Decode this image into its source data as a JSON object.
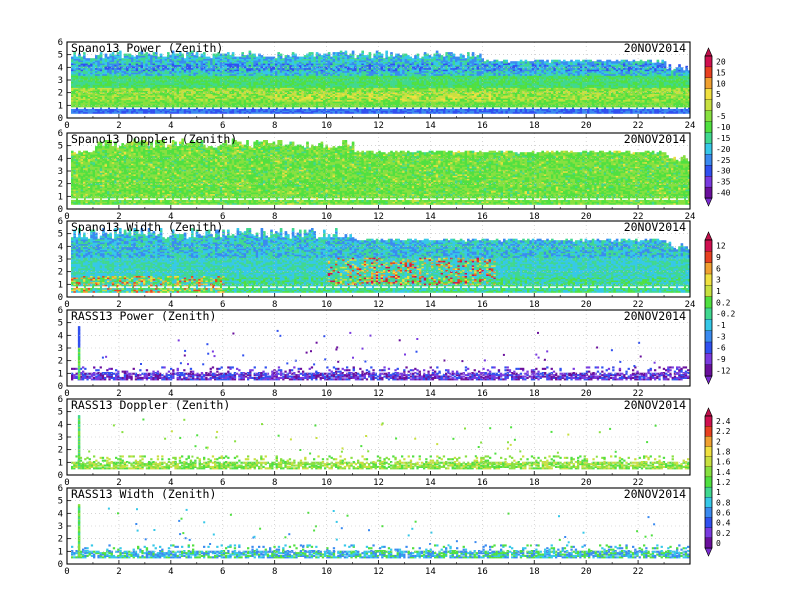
{
  "panels": [
    {
      "title": "Spano13 Power (Zenith)",
      "date": "20NOV2014",
      "kind": "power",
      "x_ticks": [
        "0",
        "2",
        "4",
        "6",
        "8",
        "10",
        "12",
        "14",
        "16",
        "18",
        "20",
        "22",
        "24"
      ]
    },
    {
      "title": "Spano13 Doppler (Zenith)",
      "date": "20NOV2014",
      "kind": "doppler",
      "x_ticks": [
        "0",
        "2",
        "4",
        "6",
        "8",
        "10",
        "12",
        "14",
        "16",
        "18",
        "20",
        "22",
        "24"
      ]
    },
    {
      "title": "Spano13 Width (Zenith)",
      "date": "20NOV2014",
      "kind": "width",
      "x_ticks": [
        "0",
        "2",
        "4",
        "6",
        "8",
        "10",
        "12",
        "14",
        "16",
        "18",
        "20",
        "22",
        "24"
      ]
    },
    {
      "title": "RASS13 Power (Zenith)",
      "date": "20NOV2014",
      "kind": "rass",
      "x_ticks": [
        "0",
        "2",
        "4",
        "6",
        "8",
        "10",
        "12",
        "14",
        "16",
        "18",
        "20",
        "22",
        ""
      ]
    },
    {
      "title": "RASS13 Doppler (Zenith)",
      "date": "20NOV2014",
      "kind": "rass",
      "x_ticks": [
        "0",
        "2",
        "4",
        "6",
        "8",
        "10",
        "12",
        "14",
        "16",
        "18",
        "20",
        "22",
        ""
      ]
    },
    {
      "title": "RASS13 Width (Zenith)",
      "date": "20NOV2014",
      "kind": "rass",
      "x_ticks": [
        "0",
        "2",
        "4",
        "6",
        "8",
        "10",
        "12",
        "14",
        "16",
        "18",
        "20",
        "22",
        ""
      ]
    }
  ],
  "y_ticks": [
    "0",
    "1",
    "2",
    "3",
    "4",
    "5",
    "6"
  ],
  "colorbars": [
    {
      "labels": [
        "20",
        "15",
        "10",
        "5",
        "0",
        "-5",
        "-10",
        "-15",
        "-20",
        "-25",
        "-30",
        "-35",
        "-40"
      ]
    },
    {
      "labels": [
        "12",
        "9",
        "6",
        "3",
        "1",
        "0.2",
        "-0.2",
        "-1",
        "-3",
        "-6",
        "-9",
        "-12"
      ]
    },
    {
      "labels": [
        "2.4",
        "2.2",
        "2",
        "1.8",
        "1.6",
        "1.4",
        "1.2",
        "1",
        "0.8",
        "0.6",
        "0.4",
        "0.2",
        "0"
      ]
    }
  ],
  "chart_data": [
    {
      "type": "heatmap",
      "title": "Spano13 Power (Zenith)",
      "x_range": [
        0,
        24
      ],
      "y_range": [
        0,
        6
      ],
      "grid": true
    },
    {
      "type": "heatmap",
      "title": "Spano13 Doppler (Zenith)",
      "x_range": [
        0,
        24
      ],
      "y_range": [
        0,
        6
      ],
      "grid": true
    },
    {
      "type": "heatmap",
      "title": "Spano13 Width (Zenith)",
      "x_range": [
        0,
        24
      ],
      "y_range": [
        0,
        6
      ],
      "grid": true
    },
    {
      "type": "heatmap",
      "title": "RASS13 Power (Zenith)",
      "x_range": [
        0,
        24
      ],
      "y_range": [
        0,
        6
      ],
      "grid": true
    },
    {
      "type": "heatmap",
      "title": "RASS13 Doppler (Zenith)",
      "x_range": [
        0,
        24
      ],
      "y_range": [
        0,
        6
      ],
      "grid": true
    },
    {
      "type": "heatmap",
      "title": "RASS13 Width (Zenith)",
      "x_range": [
        0,
        24
      ],
      "y_range": [
        0,
        6
      ],
      "grid": true
    }
  ],
  "colors": {
    "scale": [
      "#6a0f9c",
      "#7a3ae0",
      "#3050f0",
      "#3a8af0",
      "#36c8e8",
      "#40d890",
      "#50e040",
      "#88e040",
      "#c8e040",
      "#f0e040",
      "#f0a030",
      "#e84020",
      "#d01050"
    ]
  }
}
